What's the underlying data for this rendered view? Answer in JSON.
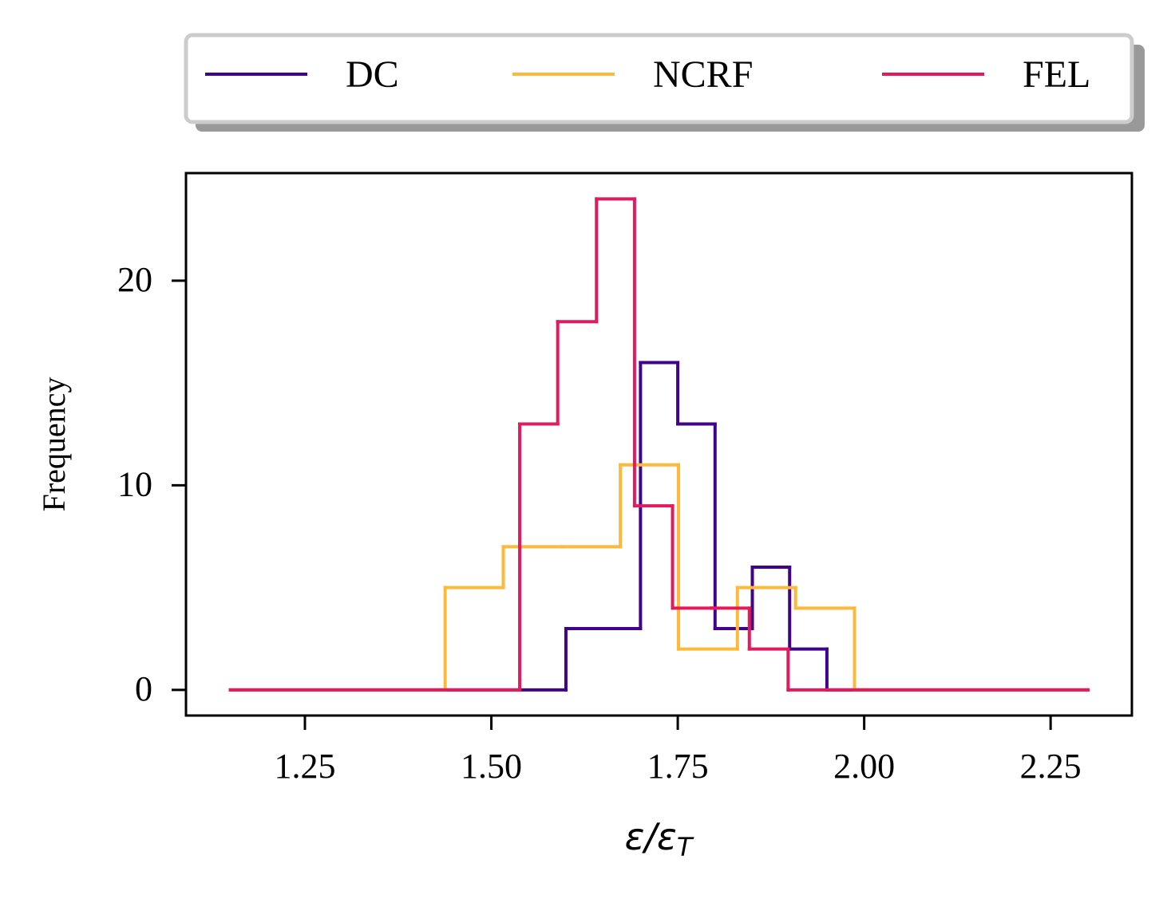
{
  "chart_data": {
    "type": "histogram-step",
    "ylabel": "Frequency",
    "xlabel": "ε/ε",
    "xlabel_subscript": "T",
    "xlim": [
      1.0905,
      2.359
    ],
    "ylim": [
      -1.25,
      25.26
    ],
    "xticks": [
      1.25,
      {
        "value": 1.5,
        "label": "1.50"
      },
      1.75,
      {
        "value": 2.0,
        "label": "2.00"
      },
      2.25
    ],
    "yticks": [
      0,
      10,
      20
    ],
    "legend": "top-outside",
    "series": [
      {
        "name": "DC",
        "color": "#40048a",
        "bins": [
          1.15,
          1.6,
          1.65,
          1.7,
          1.75,
          1.8,
          1.85,
          1.9,
          1.95,
          2.3
        ],
        "values": [
          0,
          3,
          3,
          16,
          13,
          3,
          6,
          2,
          0
        ]
      },
      {
        "name": "NCRF",
        "color": "#ffb93a",
        "bins": [
          1.15,
          1.438,
          1.516,
          1.595,
          1.673,
          1.751,
          1.83,
          1.908,
          1.987,
          2.3
        ],
        "values": [
          0,
          5,
          7,
          7,
          11,
          2,
          5,
          4,
          0
        ]
      },
      {
        "name": "FEL",
        "color": "#e31a5c",
        "bins": [
          1.15,
          1.538,
          1.589,
          1.641,
          1.692,
          1.743,
          1.795,
          1.846,
          1.898,
          2.3
        ],
        "values": [
          0,
          13,
          18,
          24,
          9,
          4,
          4,
          2,
          0
        ]
      }
    ]
  }
}
